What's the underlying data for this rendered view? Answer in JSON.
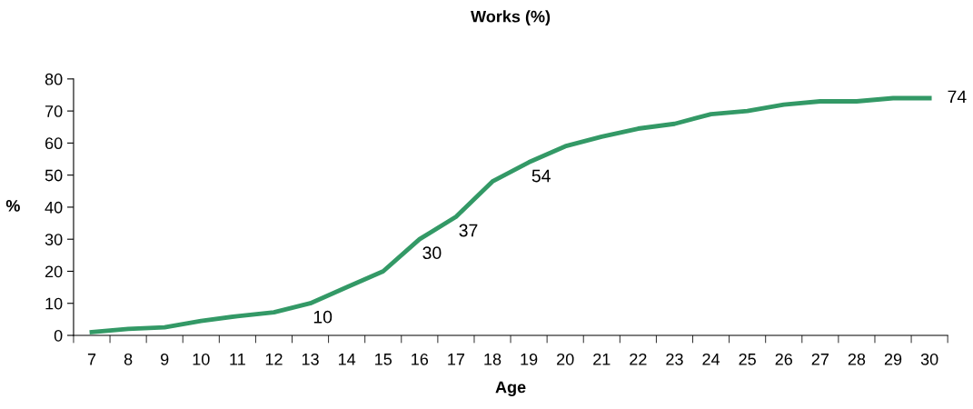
{
  "chart_data": {
    "type": "line",
    "title": "Works (%)",
    "xlabel": "Age",
    "ylabel": "%",
    "categories": [
      "7",
      "8",
      "9",
      "10",
      "11",
      "12",
      "13",
      "14",
      "15",
      "16",
      "17",
      "18",
      "19",
      "20",
      "21",
      "22",
      "23",
      "24",
      "25",
      "26",
      "27",
      "28",
      "29",
      "30"
    ],
    "series": [
      {
        "color": "#339966",
        "values": [
          1,
          2,
          2.5,
          4.5,
          6,
          7.2,
          10,
          15,
          20,
          30,
          37,
          48,
          54,
          59,
          62,
          64.5,
          66,
          69,
          70,
          72,
          73,
          73,
          74,
          74
        ],
        "value_labels": [
          null,
          null,
          null,
          null,
          null,
          null,
          "10",
          null,
          null,
          "30",
          "37",
          null,
          "54",
          null,
          null,
          null,
          null,
          null,
          null,
          null,
          null,
          null,
          null,
          "74"
        ]
      }
    ],
    "ylim": [
      0,
      80
    ],
    "yticks": [
      0,
      10,
      20,
      30,
      40,
      50,
      60,
      70,
      80
    ],
    "grid": false,
    "legend": false,
    "marker": "none",
    "line_style": "solid"
  }
}
